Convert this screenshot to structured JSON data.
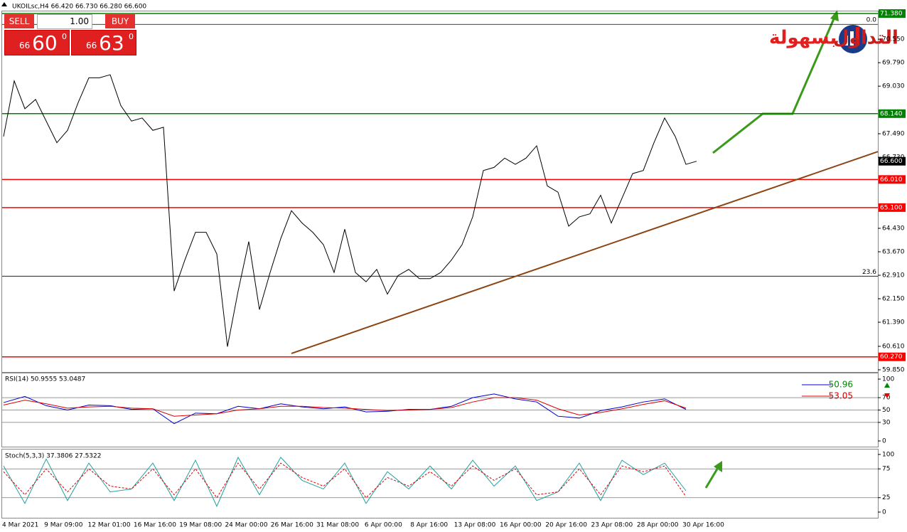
{
  "trade_panel": {
    "sell": "SELL",
    "buy": "BUY",
    "volume": "1.00",
    "bid": {
      "big": "66",
      "main": "60",
      "small": "0"
    },
    "ask": {
      "big": "66",
      "main": "63",
      "small": "0"
    }
  },
  "logo": {
    "word1": "التداول",
    "word2": "بسهولة"
  },
  "time_labels": [
    "4 Mar 2021",
    "9 Mar 09:00",
    "12 Mar 01:00",
    "16 Mar 16:00",
    "19 Mar 08:00",
    "24 Mar 00:00",
    "26 Mar 16:00",
    "31 Mar 08:00",
    "6 Apr 00:00",
    "8 Apr 16:00",
    "13 Apr 08:00",
    "16 Apr 00:00",
    "20 Apr 16:00",
    "23 Apr 08:00",
    "28 Apr 00:00",
    "30 Apr 16:00"
  ],
  "chart_data": [
    {
      "type": "line",
      "title": "UKOILsc,H4  66.420 66.730 66.280 66.600",
      "color": "#000000",
      "values": [
        67.4,
        69.2,
        68.3,
        68.6,
        67.9,
        67.2,
        67.6,
        68.5,
        69.3,
        69.3,
        69.4,
        68.4,
        67.9,
        68.0,
        67.6,
        67.7,
        62.4,
        63.4,
        64.3,
        64.3,
        63.6,
        60.6,
        62.4,
        64.0,
        61.8,
        63.0,
        64.1,
        65.0,
        64.6,
        64.3,
        63.9,
        63.0,
        64.4,
        63.0,
        62.7,
        63.1,
        62.3,
        62.9,
        63.1,
        62.8,
        62.8,
        63.0,
        63.4,
        63.9,
        64.8,
        66.3,
        66.4,
        66.7,
        66.5,
        66.7,
        67.1,
        65.8,
        65.6,
        64.5,
        64.8,
        64.9,
        65.5,
        64.6,
        65.4,
        66.2,
        66.3,
        67.2,
        68.0,
        67.4,
        66.5,
        66.6
      ],
      "ylim": [
        59.78,
        71.45
      ],
      "yticks": [
        {
          "value": 70.55,
          "label": "70.550"
        },
        {
          "value": 69.79,
          "label": "69.790"
        },
        {
          "value": 69.03,
          "label": "69.030"
        },
        {
          "value": 67.49,
          "label": "67.490"
        },
        {
          "value": 66.73,
          "label": "66.730"
        },
        {
          "value": 64.43,
          "label": "64.430"
        },
        {
          "value": 63.67,
          "label": "63.670"
        },
        {
          "value": 62.91,
          "label": "62.910"
        },
        {
          "value": 62.15,
          "label": "62.150"
        },
        {
          "value": 61.39,
          "label": "61.390"
        },
        {
          "value": 60.61,
          "label": "60.610"
        },
        {
          "value": 59.85,
          "label": "59.850"
        }
      ],
      "levels": [
        {
          "value": 71.38,
          "label": "71.380",
          "color": "#008000"
        },
        {
          "value": 68.14,
          "label": "68.140",
          "color": "#008000"
        },
        {
          "value": 66.01,
          "label": "66.010",
          "color": "#ff0000"
        },
        {
          "value": 65.1,
          "label": "65.100",
          "color": "#ff0000"
        },
        {
          "value": 60.27,
          "label": "60.270",
          "color": "#ff0000"
        },
        {
          "value": 66.6,
          "label": "66.600",
          "color": "#000000"
        }
      ],
      "fib_levels": [
        {
          "value": 71.03,
          "label": "0.0"
        },
        {
          "value": 62.88,
          "label": "23.6"
        }
      ],
      "trendline": {
        "values": [
          60.38,
          66.91
        ],
        "color": "#8b4513"
      }
    },
    {
      "type": "line",
      "title": "RSI(14) 50.9555 53.0487",
      "ylim": [
        -9.2,
        109.2
      ],
      "yticks": [
        0,
        30,
        50,
        70,
        100
      ],
      "levels": [
        30,
        50,
        70
      ],
      "series": [
        {
          "name": "50.96",
          "color": "#0000cc",
          "values": [
            62,
            72,
            57,
            50,
            58,
            57,
            51,
            52,
            28,
            45,
            44,
            56,
            52,
            60,
            55,
            52,
            55,
            47,
            48,
            51,
            51,
            56,
            70,
            76,
            68,
            63,
            40,
            37,
            49,
            55,
            63,
            68,
            51
          ]
        },
        {
          "name": "53.05",
          "color": "#dd0000",
          "values": [
            58,
            66,
            60,
            53,
            55,
            56,
            53,
            52,
            40,
            42,
            44,
            50,
            52,
            56,
            56,
            54,
            53,
            51,
            49,
            50,
            51,
            54,
            63,
            70,
            70,
            66,
            52,
            42,
            46,
            52,
            59,
            65,
            53
          ]
        }
      ]
    },
    {
      "type": "line",
      "title": "Stoch(5,3,3) 37.3806 27.5322",
      "ylim": [
        -9.9,
        108.6
      ],
      "yticks": [
        0,
        25,
        75,
        100
      ],
      "levels": [
        25,
        75
      ],
      "series": [
        {
          "color": "#20a0a0",
          "values": [
            80,
            15,
            92,
            20,
            85,
            35,
            40,
            85,
            20,
            90,
            10,
            95,
            30,
            95,
            55,
            40,
            85,
            15,
            70,
            40,
            80,
            40,
            90,
            45,
            80,
            20,
            35,
            85,
            20,
            90,
            65,
            85,
            37
          ]
        },
        {
          "color": "#dd0000",
          "dashed": true,
          "values": [
            70,
            30,
            75,
            35,
            75,
            45,
            40,
            75,
            30,
            75,
            25,
            85,
            40,
            85,
            60,
            45,
            75,
            25,
            60,
            45,
            70,
            45,
            80,
            55,
            75,
            30,
            35,
            75,
            30,
            80,
            70,
            80,
            27
          ]
        }
      ]
    }
  ]
}
